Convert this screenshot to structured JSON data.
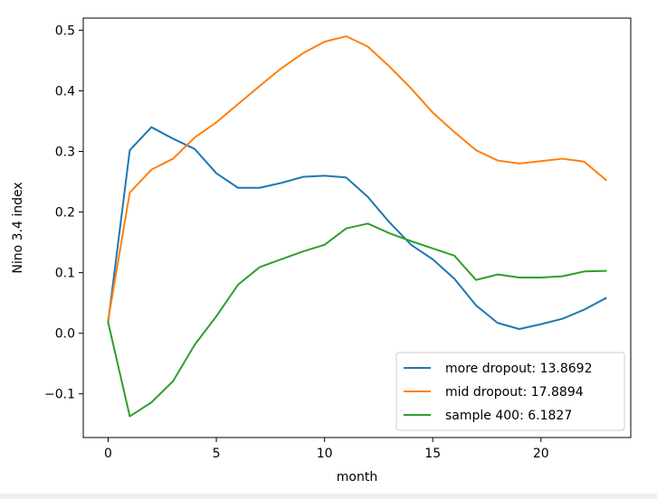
{
  "chart_data": {
    "type": "line",
    "title": "",
    "xlabel": "month",
    "ylabel": "Nino 3.4 index",
    "xlim": [
      -1.15,
      24.15
    ],
    "ylim": [
      -0.172,
      0.52
    ],
    "xticks": [
      0,
      5,
      10,
      15,
      20
    ],
    "xtick_labels": [
      "0",
      "5",
      "10",
      "15",
      "20"
    ],
    "yticks": [
      -0.1,
      0.0,
      0.1,
      0.2,
      0.3,
      0.4,
      0.5
    ],
    "ytick_labels": [
      "−0.1",
      "0.0",
      "0.1",
      "0.2",
      "0.3",
      "0.4",
      "0.5"
    ],
    "grid": false,
    "legend_position": "bottom-right",
    "x": [
      0,
      1,
      2,
      3,
      4,
      5,
      6,
      7,
      8,
      9,
      10,
      11,
      12,
      13,
      14,
      15,
      16,
      17,
      18,
      19,
      20,
      21,
      22,
      23
    ],
    "series": [
      {
        "name": "more dropout: 13.8692",
        "color": "#1f77b4",
        "values": [
          0.018,
          0.302,
          0.34,
          0.321,
          0.304,
          0.264,
          0.24,
          0.24,
          0.248,
          0.258,
          0.26,
          0.257,
          0.225,
          0.183,
          0.146,
          0.122,
          0.09,
          0.046,
          0.017,
          0.007,
          0.015,
          0.024,
          0.039,
          0.058
        ]
      },
      {
        "name": "mid dropout: 17.8894",
        "color": "#ff7f0e",
        "values": [
          0.022,
          0.232,
          0.27,
          0.288,
          0.323,
          0.348,
          0.378,
          0.408,
          0.437,
          0.462,
          0.481,
          0.49,
          0.473,
          0.44,
          0.404,
          0.364,
          0.332,
          0.302,
          0.285,
          0.28,
          0.284,
          0.288,
          0.283,
          0.253
        ]
      },
      {
        "name": "sample 400: 6.1827",
        "color": "#2ca02c",
        "values": [
          0.018,
          -0.137,
          -0.114,
          -0.079,
          -0.019,
          0.028,
          0.08,
          0.109,
          0.122,
          0.135,
          0.146,
          0.173,
          0.181,
          0.165,
          0.152,
          0.14,
          0.128,
          0.088,
          0.097,
          0.092,
          0.092,
          0.094,
          0.102,
          0.103
        ]
      }
    ]
  }
}
